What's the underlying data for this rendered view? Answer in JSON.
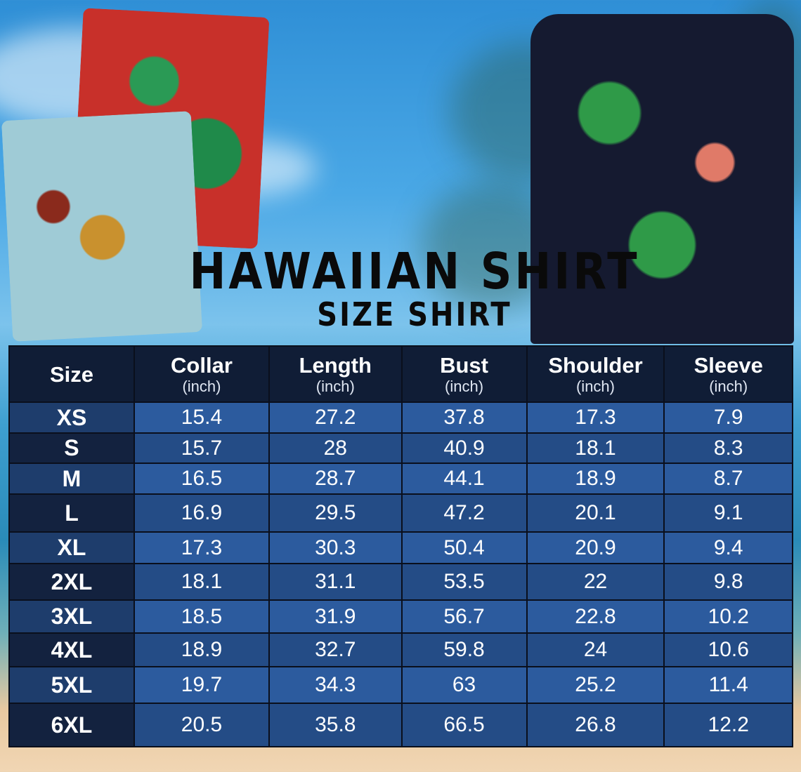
{
  "title": "HAWAIIAN SHIRT",
  "subtitle": "SIZE SHIRT",
  "colors": {
    "header_bg": "#101d36",
    "row_light": "#2c5b9e",
    "row_dark": "#244c86",
    "size_col_dark": "#13223f",
    "title_text": "#0a0a0a"
  },
  "table": {
    "headers": [
      {
        "label": "Size",
        "unit": ""
      },
      {
        "label": "Collar",
        "unit": "(inch)"
      },
      {
        "label": "Length",
        "unit": "(inch)"
      },
      {
        "label": "Bust",
        "unit": "(inch)"
      },
      {
        "label": "Shoulder",
        "unit": "(inch)"
      },
      {
        "label": "Sleeve",
        "unit": "(inch)"
      }
    ],
    "rows": [
      [
        "XS",
        "15.4",
        "27.2",
        "37.8",
        "17.3",
        "7.9"
      ],
      [
        "S",
        "15.7",
        "28",
        "40.9",
        "18.1",
        "8.3"
      ],
      [
        "M",
        "16.5",
        "28.7",
        "44.1",
        "18.9",
        "8.7"
      ],
      [
        "L",
        "16.9",
        "29.5",
        "47.2",
        "20.1",
        "9.1"
      ],
      [
        "XL",
        "17.3",
        "30.3",
        "50.4",
        "20.9",
        "9.4"
      ],
      [
        "2XL",
        "18.1",
        "31.1",
        "53.5",
        "22",
        "9.8"
      ],
      [
        "3XL",
        "18.5",
        "31.9",
        "56.7",
        "22.8",
        "10.2"
      ],
      [
        "4XL",
        "18.9",
        "32.7",
        "59.8",
        "24",
        "10.6"
      ],
      [
        "5XL",
        "19.7",
        "34.3",
        "63",
        "25.2",
        "11.4"
      ],
      [
        "6XL",
        "20.5",
        "35.8",
        "66.5",
        "26.8",
        "12.2"
      ]
    ]
  }
}
